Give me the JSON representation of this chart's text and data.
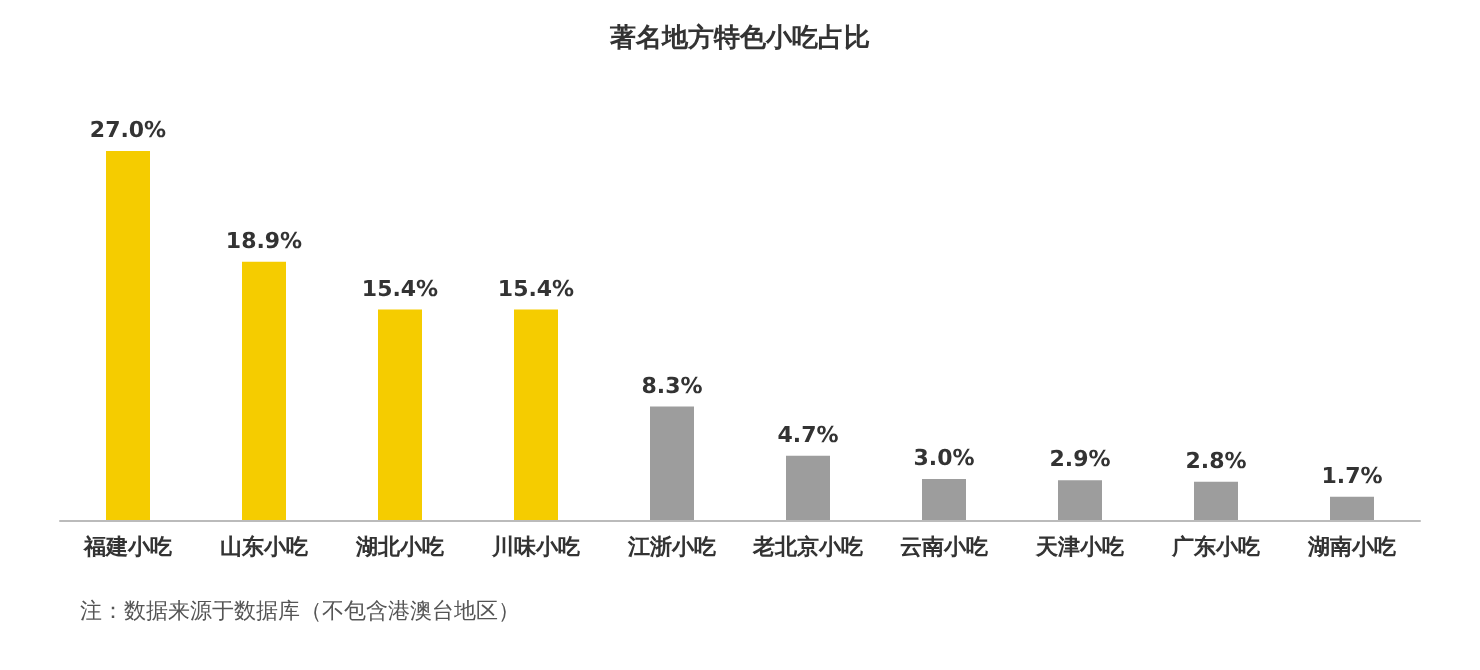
{
  "chart_data": {
    "type": "bar",
    "title": "著名地方特色小吃占比",
    "categories": [
      "福建小吃",
      "山东小吃",
      "湖北小吃",
      "川味小吃",
      "江浙小吃",
      "老北京小吃",
      "云南小吃",
      "天津小吃",
      "广东小吃",
      "湖南小吃"
    ],
    "values": [
      27.0,
      18.9,
      15.4,
      15.4,
      8.3,
      4.7,
      3.0,
      2.9,
      2.8,
      1.7
    ],
    "value_labels": [
      "27.0%",
      "18.9%",
      "15.4%",
      "15.4%",
      "8.3%",
      "4.7%",
      "3.0%",
      "2.9%",
      "2.8%",
      "1.7%"
    ],
    "colors": [
      "#f5cc00",
      "#f5cc00",
      "#f5cc00",
      "#f5cc00",
      "#9d9d9d",
      "#9d9d9d",
      "#9d9d9d",
      "#9d9d9d",
      "#9d9d9d",
      "#9d9d9d"
    ],
    "annotations": [
      "注：数据来源于数据库（不包含港澳台地区）"
    ]
  }
}
